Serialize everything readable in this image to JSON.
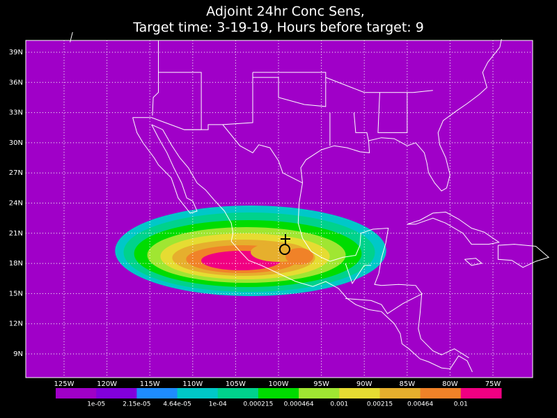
{
  "title": {
    "line1": "Adjoint 24hr Conc Sens,",
    "line2": "Target time: 3-19-19, Hours before target: 9"
  },
  "map": {
    "background": "#a000c8",
    "lat_labels": [
      "39N",
      "36N",
      "33N",
      "30N",
      "27N",
      "24N",
      "21N",
      "18N",
      "15N",
      "12N",
      "9N"
    ],
    "lon_labels": [
      "125W",
      "120W",
      "115W",
      "110W",
      "105W",
      "100W",
      "95W",
      "90W",
      "85W",
      "80W",
      "75W"
    ]
  },
  "colorbar": {
    "colors": [
      "#a000c8",
      "#8200dc",
      "#1e8cff",
      "#00c8c8",
      "#00d28c",
      "#00dc00",
      "#a0e632",
      "#e6dc32",
      "#e6af2d",
      "#f08228",
      "#f00082"
    ],
    "labels": [
      "1e-05",
      "2.15e-05",
      "4.64e-05",
      "1e-04",
      "0.000215",
      "0.000464",
      "0.001",
      "0.00215",
      "0.00464",
      "0.01"
    ]
  }
}
